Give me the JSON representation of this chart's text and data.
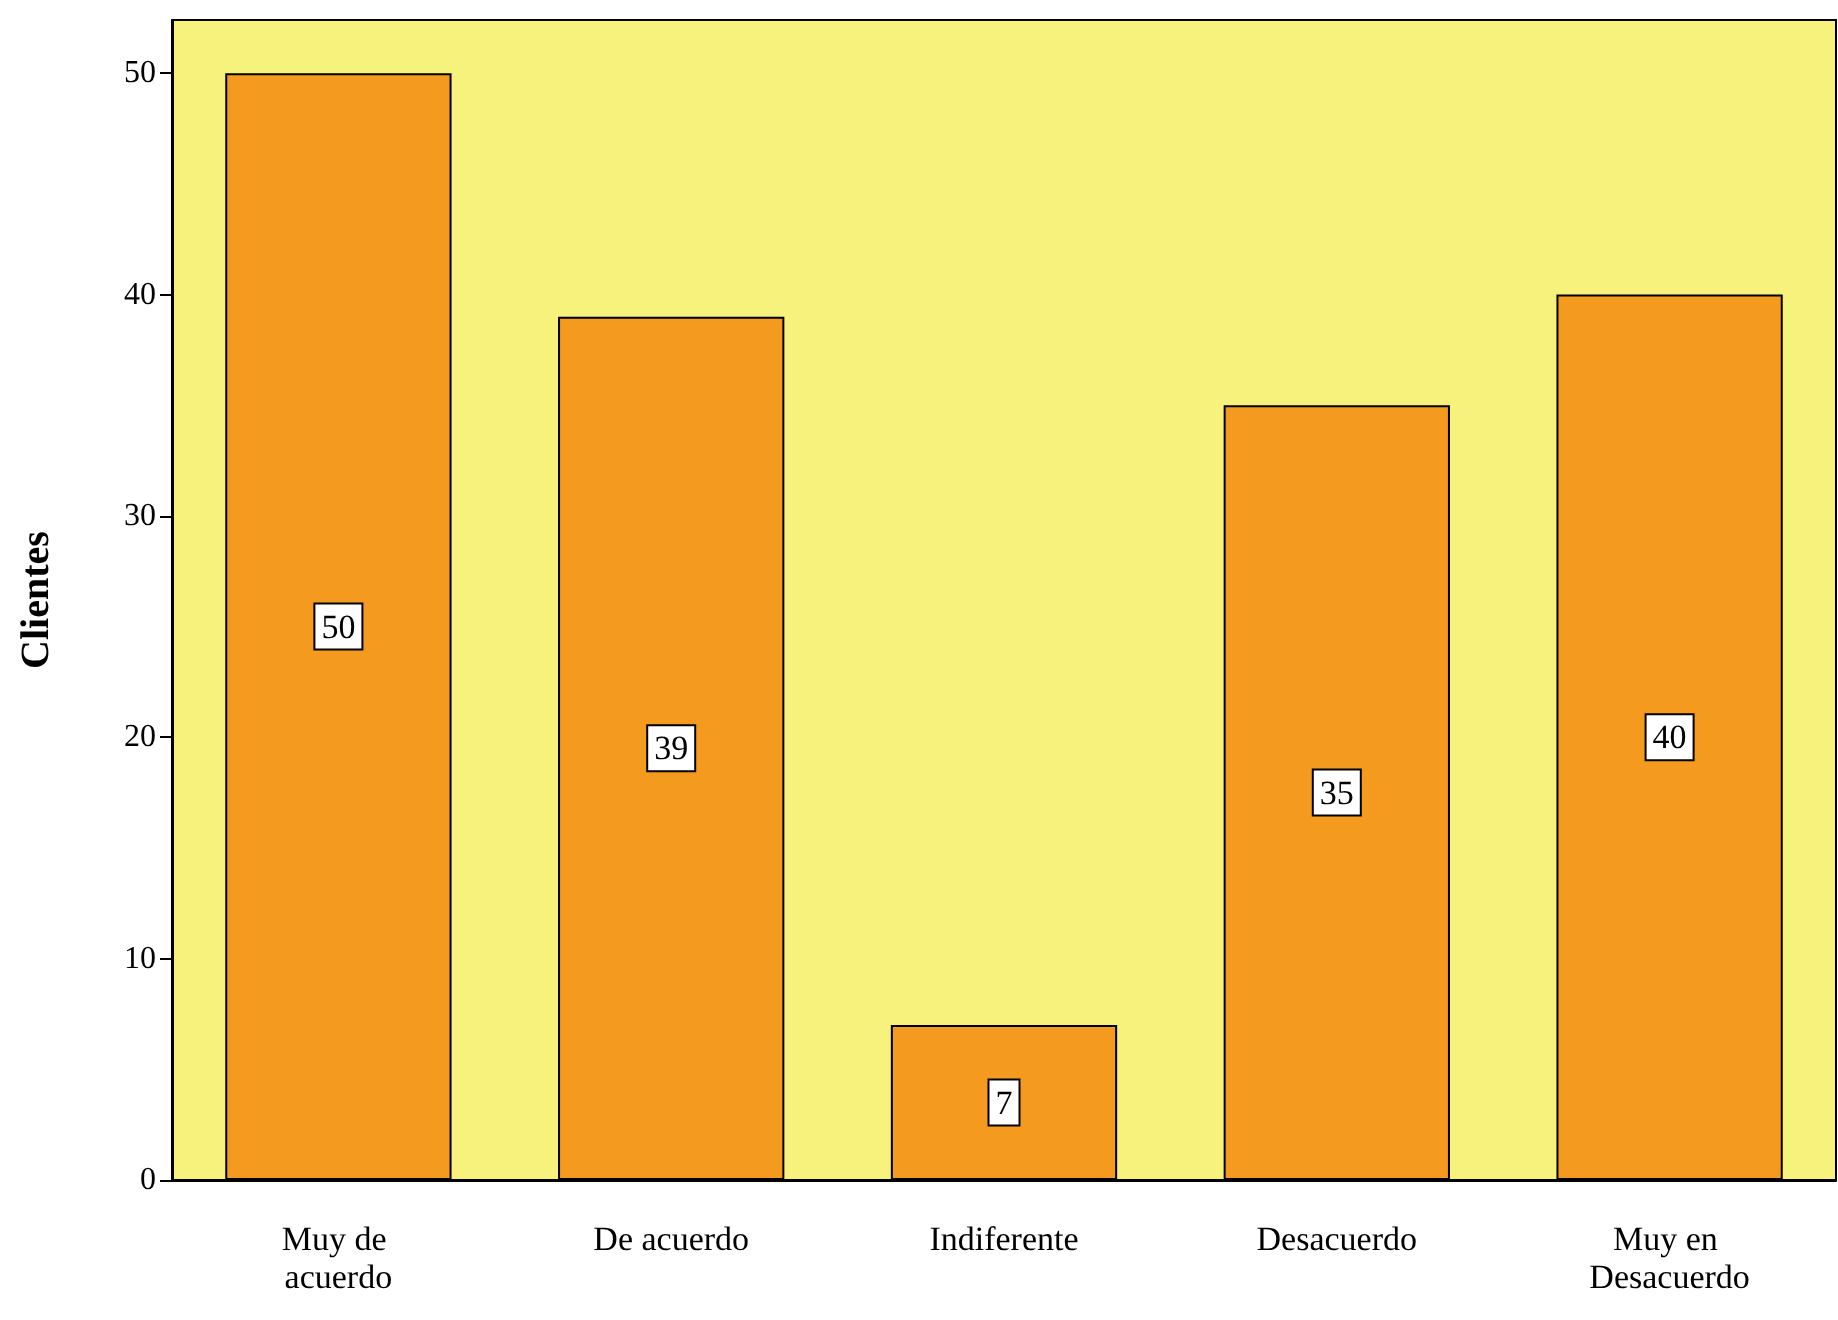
{
  "chart_data": {
    "type": "bar",
    "ylabel": "Clientes",
    "categories": [
      "Muy de acuerdo",
      "De acuerdo",
      "Indiferente",
      "Desacuerdo",
      "Muy en Desacuerdo"
    ],
    "values": [
      50,
      39,
      7,
      35,
      40
    ],
    "color": "#f49a1e",
    "ylim": [
      0,
      52.4
    ],
    "yticks": [
      0,
      10,
      20,
      30,
      40,
      50
    ],
    "grid": false,
    "data_labels": true
  }
}
